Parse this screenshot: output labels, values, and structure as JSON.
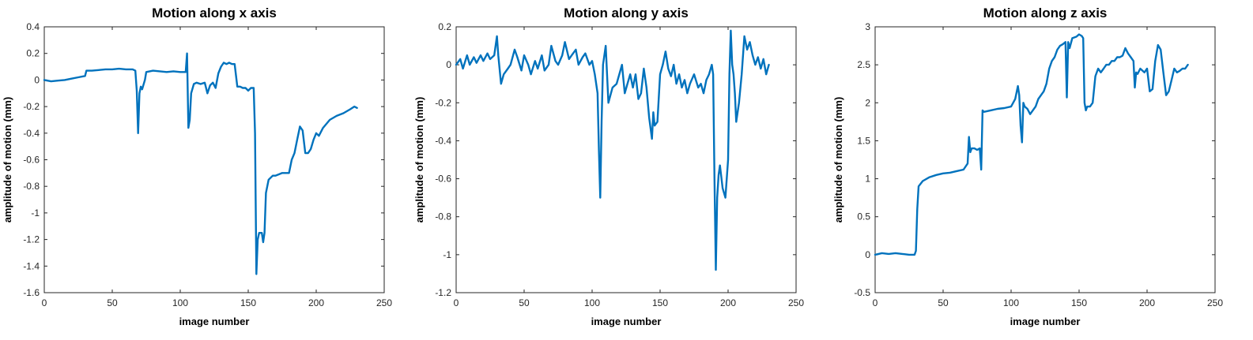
{
  "chart_data": [
    {
      "type": "line",
      "title": "Motion along x axis",
      "xlabel": "image number",
      "ylabel": "amplitude of motion (mm)",
      "xlim": [
        0,
        250
      ],
      "ylim": [
        -1.6,
        0.4
      ],
      "xticks": [
        "0",
        "50",
        "100",
        "150",
        "200",
        "250"
      ],
      "yticks": [
        "0.4",
        "0.2",
        "0",
        "-0.2",
        "-0.4",
        "-0.6",
        "-0.8",
        "-1",
        "-1.2",
        "-1.4",
        "-1.6"
      ],
      "grid": false,
      "color": "#0072bd",
      "series": [
        {
          "x": [
            0,
            5,
            10,
            15,
            20,
            25,
            30,
            31,
            35,
            40,
            45,
            50,
            55,
            60,
            65,
            67,
            68,
            69,
            70,
            71,
            72,
            74,
            75,
            80,
            85,
            90,
            95,
            100,
            104,
            105,
            106,
            107,
            108,
            110,
            112,
            115,
            118,
            120,
            122,
            124,
            126,
            128,
            130,
            132,
            134,
            136,
            138,
            140,
            142,
            144,
            146,
            148,
            150,
            152,
            154,
            155,
            156,
            157,
            158,
            160,
            161,
            162,
            163,
            165,
            168,
            170,
            175,
            180,
            182,
            184,
            186,
            188,
            190,
            192,
            194,
            196,
            198,
            200,
            202,
            205,
            210,
            215,
            220,
            225,
            228,
            230
          ],
          "y": [
            0,
            -0.01,
            -0.005,
            0.0,
            0.01,
            0.02,
            0.03,
            0.07,
            0.07,
            0.075,
            0.08,
            0.08,
            0.085,
            0.08,
            0.08,
            0.07,
            -0.08,
            -0.4,
            -0.1,
            -0.05,
            -0.07,
            0.0,
            0.06,
            0.07,
            0.065,
            0.06,
            0.065,
            0.06,
            0.06,
            0.2,
            -0.36,
            -0.3,
            -0.1,
            -0.03,
            -0.02,
            -0.03,
            -0.02,
            -0.1,
            -0.04,
            -0.02,
            -0.06,
            0.05,
            0.1,
            0.13,
            0.12,
            0.13,
            0.12,
            0.12,
            -0.05,
            -0.05,
            -0.06,
            -0.06,
            -0.08,
            -0.06,
            -0.06,
            -0.4,
            -1.46,
            -1.2,
            -1.15,
            -1.15,
            -1.22,
            -1.15,
            -0.85,
            -0.75,
            -0.72,
            -0.72,
            -0.7,
            -0.7,
            -0.6,
            -0.55,
            -0.45,
            -0.35,
            -0.38,
            -0.55,
            -0.55,
            -0.52,
            -0.45,
            -0.4,
            -0.42,
            -0.36,
            -0.3,
            -0.27,
            -0.25,
            -0.22,
            -0.2,
            -0.21
          ]
        }
      ]
    },
    {
      "type": "line",
      "title": "Motion along y axis",
      "xlabel": "image number",
      "ylabel": "amplitude of motion (mm)",
      "xlim": [
        0,
        250
      ],
      "ylim": [
        -1.2,
        0.2
      ],
      "xticks": [
        "0",
        "50",
        "100",
        "150",
        "200",
        "250"
      ],
      "yticks": [
        "0.2",
        "0",
        "-0.2",
        "-0.4",
        "-0.6",
        "-0.8",
        "-1",
        "-1.2"
      ],
      "grid": false,
      "color": "#0072bd",
      "series": [
        {
          "x": [
            0,
            3,
            5,
            8,
            10,
            13,
            15,
            18,
            20,
            23,
            25,
            28,
            30,
            31,
            33,
            35,
            38,
            40,
            43,
            45,
            48,
            50,
            53,
            55,
            58,
            60,
            63,
            65,
            68,
            70,
            73,
            75,
            78,
            80,
            83,
            85,
            88,
            90,
            93,
            95,
            98,
            100,
            102,
            104,
            105,
            106,
            107,
            108,
            110,
            112,
            115,
            118,
            120,
            122,
            124,
            126,
            128,
            130,
            132,
            134,
            136,
            138,
            140,
            142,
            144,
            145,
            146,
            148,
            150,
            152,
            154,
            156,
            158,
            160,
            162,
            164,
            166,
            168,
            170,
            172,
            175,
            178,
            180,
            182,
            184,
            186,
            188,
            189,
            190,
            191,
            192,
            193,
            194,
            196,
            198,
            200,
            201,
            202,
            203,
            204,
            205,
            206,
            208,
            210,
            212,
            214,
            216,
            218,
            220,
            222,
            224,
            226,
            228,
            230
          ],
          "y": [
            0.0,
            0.03,
            -0.02,
            0.05,
            0.0,
            0.04,
            0.01,
            0.05,
            0.02,
            0.06,
            0.03,
            0.05,
            0.15,
            0.05,
            -0.1,
            -0.05,
            -0.02,
            0.0,
            0.08,
            0.04,
            -0.03,
            0.05,
            0.0,
            -0.05,
            0.02,
            -0.02,
            0.05,
            -0.03,
            0.0,
            0.1,
            0.02,
            0.0,
            0.05,
            0.12,
            0.03,
            0.05,
            0.08,
            0.0,
            0.04,
            0.06,
            0.0,
            0.02,
            -0.05,
            -0.15,
            -0.45,
            -0.7,
            -0.3,
            0.0,
            0.1,
            -0.2,
            -0.12,
            -0.1,
            -0.05,
            0.0,
            -0.15,
            -0.1,
            -0.05,
            -0.12,
            -0.05,
            -0.18,
            -0.15,
            -0.02,
            -0.12,
            -0.28,
            -0.39,
            -0.25,
            -0.32,
            -0.3,
            -0.05,
            0.0,
            0.07,
            -0.02,
            -0.06,
            0.0,
            -0.1,
            -0.05,
            -0.12,
            -0.08,
            -0.15,
            -0.1,
            -0.05,
            -0.12,
            -0.1,
            -0.15,
            -0.08,
            -0.05,
            0.0,
            -0.05,
            -0.6,
            -1.08,
            -0.7,
            -0.58,
            -0.53,
            -0.65,
            -0.7,
            -0.5,
            -0.05,
            0.18,
            0.0,
            -0.05,
            -0.15,
            -0.3,
            -0.2,
            -0.05,
            0.15,
            0.08,
            0.12,
            0.05,
            0.0,
            0.04,
            -0.02,
            0.03,
            -0.05,
            0.0
          ]
        }
      ]
    },
    {
      "type": "line",
      "title": "Motion along z axis",
      "xlabel": "image number",
      "ylabel": "amplitude of motion (mm)",
      "xlim": [
        0,
        250
      ],
      "ylim": [
        -0.5,
        3
      ],
      "xticks": [
        "0",
        "50",
        "100",
        "150",
        "200",
        "250"
      ],
      "yticks": [
        "3",
        "2.5",
        "2",
        "1.5",
        "1",
        "0.5",
        "0",
        "-0.5"
      ],
      "grid": false,
      "color": "#0072bd",
      "series": [
        {
          "x": [
            0,
            5,
            10,
            15,
            20,
            25,
            29,
            30,
            31,
            32,
            35,
            40,
            45,
            50,
            55,
            60,
            65,
            68,
            69,
            70,
            71,
            73,
            75,
            77,
            78,
            79,
            80,
            85,
            90,
            95,
            100,
            103,
            105,
            106,
            107,
            108,
            109,
            110,
            112,
            114,
            116,
            118,
            120,
            122,
            124,
            126,
            128,
            130,
            132,
            134,
            136,
            138,
            140,
            141,
            142,
            143,
            145,
            148,
            150,
            152,
            153,
            154,
            155,
            156,
            158,
            160,
            162,
            164,
            166,
            168,
            170,
            172,
            174,
            176,
            178,
            180,
            182,
            184,
            186,
            188,
            190,
            191,
            192,
            193,
            195,
            198,
            200,
            202,
            204,
            206,
            208,
            210,
            212,
            214,
            216,
            218,
            220,
            222,
            224,
            226,
            228,
            230
          ],
          "y": [
            0.0,
            0.02,
            0.01,
            0.02,
            0.01,
            0.0,
            0.0,
            0.05,
            0.6,
            0.9,
            0.97,
            1.02,
            1.05,
            1.07,
            1.08,
            1.1,
            1.12,
            1.2,
            1.55,
            1.35,
            1.4,
            1.4,
            1.38,
            1.4,
            1.12,
            1.9,
            1.88,
            1.9,
            1.92,
            1.93,
            1.95,
            2.05,
            2.22,
            2.1,
            1.7,
            1.48,
            2.0,
            1.95,
            1.92,
            1.85,
            1.9,
            1.95,
            2.05,
            2.1,
            2.15,
            2.25,
            2.45,
            2.55,
            2.6,
            2.7,
            2.75,
            2.77,
            2.8,
            2.07,
            2.8,
            2.72,
            2.85,
            2.87,
            2.9,
            2.88,
            2.85,
            2.0,
            1.9,
            1.95,
            1.95,
            2.0,
            2.35,
            2.45,
            2.4,
            2.45,
            2.5,
            2.5,
            2.55,
            2.55,
            2.6,
            2.6,
            2.62,
            2.72,
            2.65,
            2.6,
            2.55,
            2.2,
            2.4,
            2.38,
            2.45,
            2.4,
            2.45,
            2.15,
            2.18,
            2.55,
            2.76,
            2.7,
            2.4,
            2.1,
            2.15,
            2.3,
            2.45,
            2.4,
            2.42,
            2.45,
            2.45,
            2.5
          ]
        }
      ]
    }
  ]
}
